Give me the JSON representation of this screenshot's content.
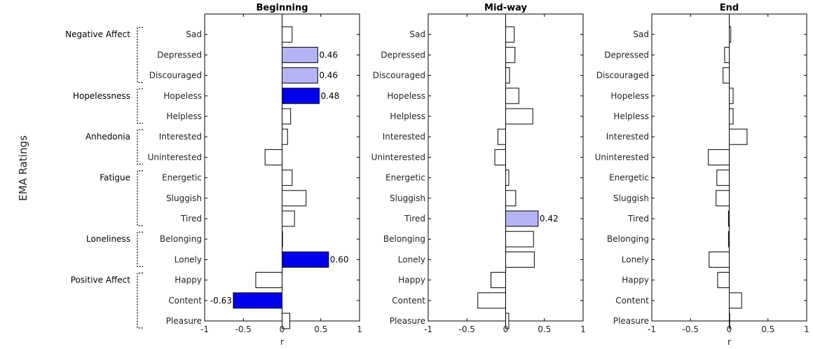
{
  "figure": {
    "ylabel": "EMA Ratings"
  },
  "groups": [
    {
      "label": "Negative Affect",
      "first": 0,
      "last": 2
    },
    {
      "label": "Hopelessness",
      "first": 3,
      "last": 4
    },
    {
      "label": "Anhedonia",
      "first": 5,
      "last": 6
    },
    {
      "label": "Fatigue",
      "first": 7,
      "last": 9
    },
    {
      "label": "Loneliness",
      "first": 10,
      "last": 11
    },
    {
      "label": "Positive Affect",
      "first": 12,
      "last": 14
    }
  ],
  "colors": {
    "strong": "#0000ee",
    "light": "#b4b4f5",
    "none": "#ffffff",
    "edge": "#000000"
  },
  "chart_data": [
    {
      "type": "bar",
      "orientation": "horizontal",
      "title": "Beginning",
      "xlabel": "r",
      "xlim": [
        -1,
        1
      ],
      "xticks": [
        "-1",
        "-0.5",
        "0",
        "0.5",
        "1"
      ],
      "categories": [
        "Sad",
        "Depressed",
        "Discouraged",
        "Hopeless",
        "Helpless",
        "Interested",
        "Uninterested",
        "Energetic",
        "Sluggish",
        "Tired",
        "Belonging",
        "Lonely",
        "Happy",
        "Content",
        "Pleasure"
      ],
      "values": [
        0.13,
        0.46,
        0.46,
        0.48,
        0.11,
        0.07,
        -0.22,
        0.13,
        0.31,
        0.16,
        0.0,
        0.6,
        -0.34,
        -0.63,
        0.1
      ],
      "highlight": [
        "none",
        "light",
        "light",
        "strong",
        "none",
        "none",
        "none",
        "none",
        "none",
        "none",
        "none",
        "strong",
        "none",
        "strong",
        "none"
      ],
      "data_labels": [
        "",
        "0.46",
        "0.46",
        "0.48",
        "",
        "",
        "",
        "",
        "",
        "",
        "",
        "0.60",
        "",
        "-0.63",
        ""
      ]
    },
    {
      "type": "bar",
      "orientation": "horizontal",
      "title": "Mid-way",
      "xlabel": "",
      "xlim": [
        -1,
        1
      ],
      "xticks": [
        "-1",
        "-0.5",
        "0",
        "0.5",
        "1"
      ],
      "categories": [
        "Sad",
        "Depressed",
        "Discouraged",
        "Hopeless",
        "Helpless",
        "Interested",
        "Uninterested",
        "Energetic",
        "Sluggish",
        "Tired",
        "Belonging",
        "Lonely",
        "Happy",
        "Content",
        "Pleasure"
      ],
      "values": [
        0.11,
        0.12,
        0.05,
        0.17,
        0.35,
        -0.1,
        -0.14,
        0.04,
        0.13,
        0.42,
        0.36,
        0.37,
        -0.19,
        -0.36,
        0.04
      ],
      "highlight": [
        "none",
        "none",
        "none",
        "none",
        "none",
        "none",
        "none",
        "none",
        "none",
        "light",
        "none",
        "none",
        "none",
        "none",
        "none"
      ],
      "data_labels": [
        "",
        "",
        "",
        "",
        "",
        "",
        "",
        "",
        "",
        "0.42",
        "",
        "",
        "",
        "",
        ""
      ]
    },
    {
      "type": "bar",
      "orientation": "horizontal",
      "title": "End",
      "xlabel": "r",
      "xlim": [
        -1,
        1
      ],
      "xticks": [
        "-1",
        "-0.5",
        "0",
        "0.5",
        "1"
      ],
      "categories": [
        "Sad",
        "Depressed",
        "Discouraged",
        "Hopeless",
        "Helpless",
        "Interested",
        "Uninterested",
        "Energetic",
        "Sluggish",
        "Tired",
        "Belonging",
        "Lonely",
        "Happy",
        "Content",
        "Pleasure"
      ],
      "values": [
        0.02,
        -0.06,
        -0.08,
        0.05,
        0.05,
        0.23,
        -0.27,
        -0.16,
        -0.17,
        -0.01,
        -0.01,
        -0.26,
        -0.15,
        0.16,
        0.0
      ],
      "highlight": [
        "none",
        "none",
        "none",
        "none",
        "none",
        "none",
        "none",
        "none",
        "none",
        "none",
        "none",
        "none",
        "none",
        "none",
        "none"
      ],
      "data_labels": [
        "",
        "",
        "",
        "",
        "",
        "",
        "",
        "",
        "",
        "",
        "",
        "",
        "",
        "",
        ""
      ]
    }
  ]
}
